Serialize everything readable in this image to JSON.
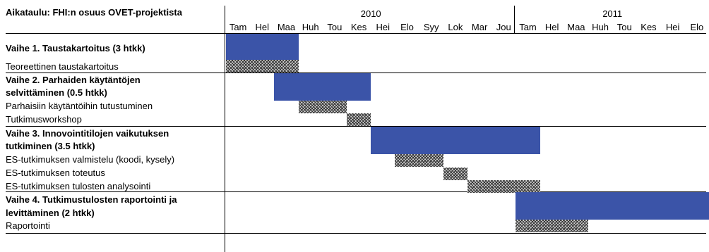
{
  "chart_data": {
    "type": "gantt",
    "title": "Aikataulu: FHI:n osuus OVET-projektista",
    "years": [
      "2010",
      "2011"
    ],
    "months": [
      "Tam",
      "Hel",
      "Maa",
      "Huh",
      "Tou",
      "Kes",
      "Hei",
      "Elo",
      "Syy",
      "Lok",
      "Mar",
      "Jou",
      "Tam",
      "Hel",
      "Maa",
      "Huh",
      "Tou",
      "Kes",
      "Hei",
      "Elo"
    ],
    "rows": [
      {
        "label": "Vaihe 1. Taustakartoitus (3 htkk)",
        "kind": "phase",
        "start": 0,
        "end": 3
      },
      {
        "label": "Teoreettinen taustakartoitus",
        "kind": "task",
        "start": 0,
        "end": 3
      },
      {
        "label": "Vaihe 2. Parhaiden käytäntöjen selvittäminen (0.5 htkk)",
        "kind": "phase",
        "start": 2,
        "end": 6
      },
      {
        "label": "Parhaisiin käytäntöihin tutustuminen",
        "kind": "task",
        "start": 3,
        "end": 5
      },
      {
        "label": "Tutkimusworkshop",
        "kind": "task",
        "start": 5,
        "end": 6
      },
      {
        "label": "Vaihe 3. Innovointitilojen vaikutuksen tutkiminen (3.5 htkk)",
        "kind": "phase",
        "start": 6,
        "end": 13
      },
      {
        "label": "ES-tutkimuksen valmistelu (koodi, kysely)",
        "kind": "task",
        "start": 7,
        "end": 9
      },
      {
        "label": "ES-tutkimuksen toteutus",
        "kind": "task",
        "start": 9,
        "end": 10
      },
      {
        "label": "ES-tutkimuksen tulosten analysointi",
        "kind": "task",
        "start": 10,
        "end": 13
      },
      {
        "label": "Vaihe 4. Tutkimustulosten raportointi ja levittäminen (2 htkk)",
        "kind": "phase",
        "start": 12,
        "end": 20
      },
      {
        "label": "Raportointi",
        "kind": "task",
        "start": 12,
        "end": 15
      }
    ]
  },
  "labels": {
    "title": "Aikataulu: FHI:n osuus OVET-projektista",
    "phase1": "Vaihe 1. Taustakartoitus (3 htkk)",
    "task1a": "Teoreettinen taustakartoitus",
    "phase2_line1": "Vaihe 2. Parhaiden käytäntöjen",
    "phase2_line2": "selvittäminen (0.5 htkk)",
    "task2a": "Parhaisiin käytäntöihin tutustuminen",
    "task2b": "Tutkimusworkshop",
    "phase3_line1": "Vaihe 3. Innovointitilojen vaikutuksen",
    "phase3_line2": "tutkiminen (3.5 htkk)",
    "task3a": "ES-tutkimuksen valmistelu (koodi, kysely)",
    "task3b": "ES-tutkimuksen toteutus",
    "task3c": "ES-tutkimuksen tulosten analysointi",
    "phase4_line1": "Vaihe 4. Tutkimustulosten raportointi ja",
    "phase4_line2": "levittäminen (2 htkk)",
    "task4a": "Raportointi"
  }
}
